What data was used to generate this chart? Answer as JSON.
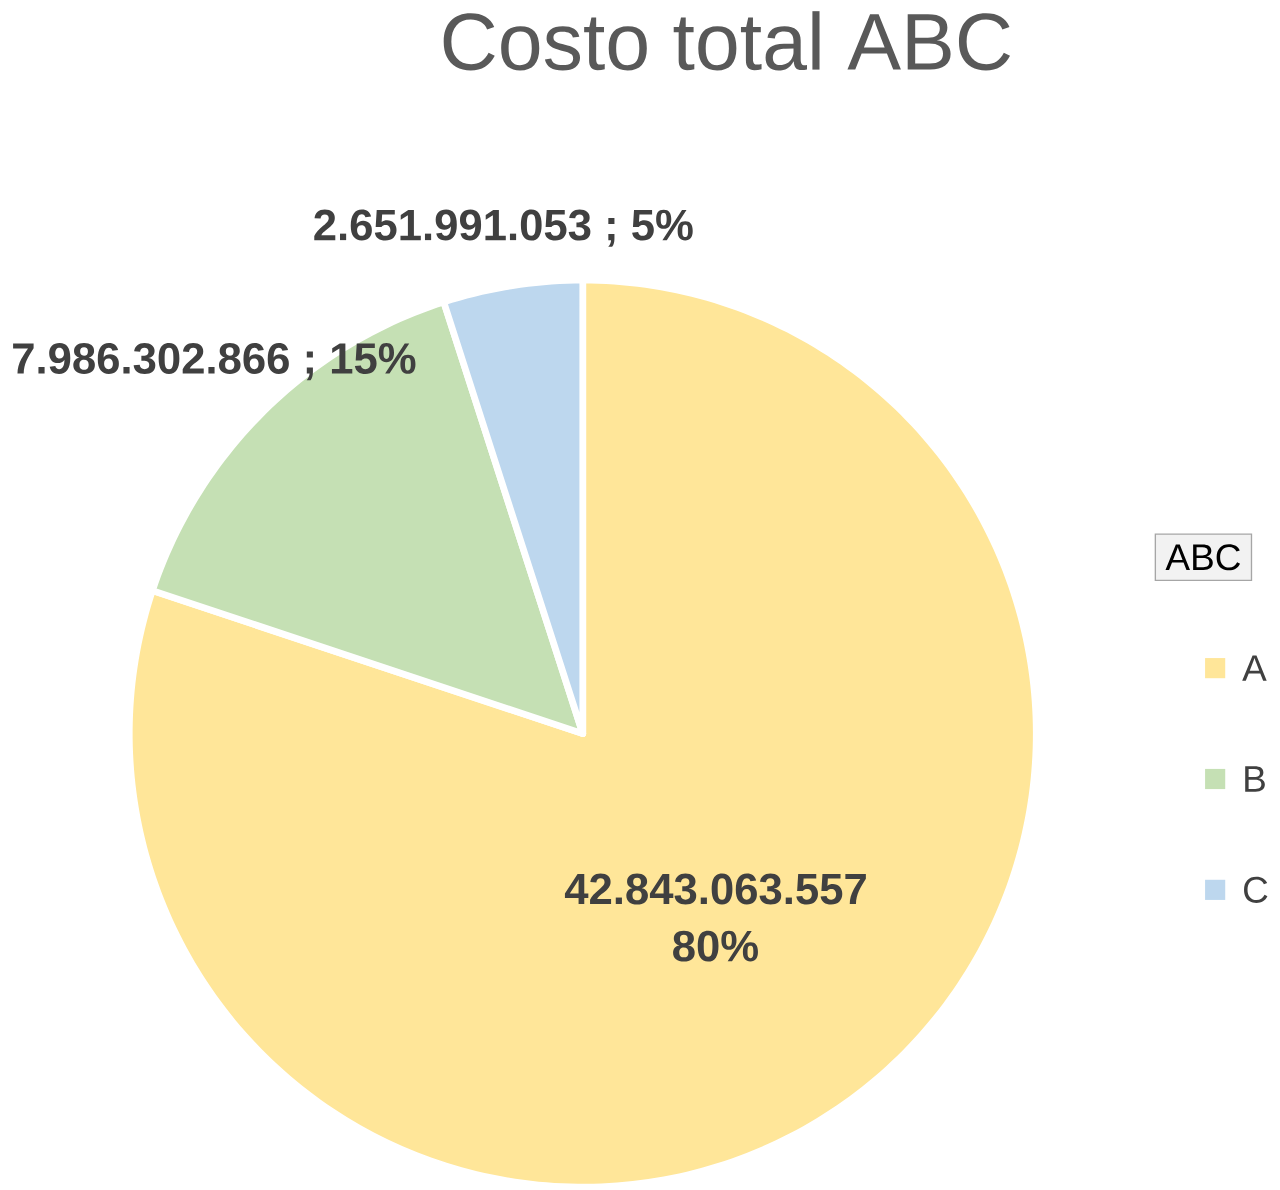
{
  "chart_data": {
    "type": "pie",
    "title": "Costo total ABC",
    "legend_title": "ABC",
    "legend": "right",
    "categories": [
      "A",
      "B",
      "C"
    ],
    "values": [
      42843063557,
      7986302866,
      2651991053
    ],
    "colors": [
      "#ffe699",
      "#c5e0b4",
      "#bdd7ee"
    ],
    "value_labels": [
      "42.843.063.557 80%",
      "7.986.302.866 ; 15%",
      "2.651.991.053 ; 5%"
    ]
  }
}
